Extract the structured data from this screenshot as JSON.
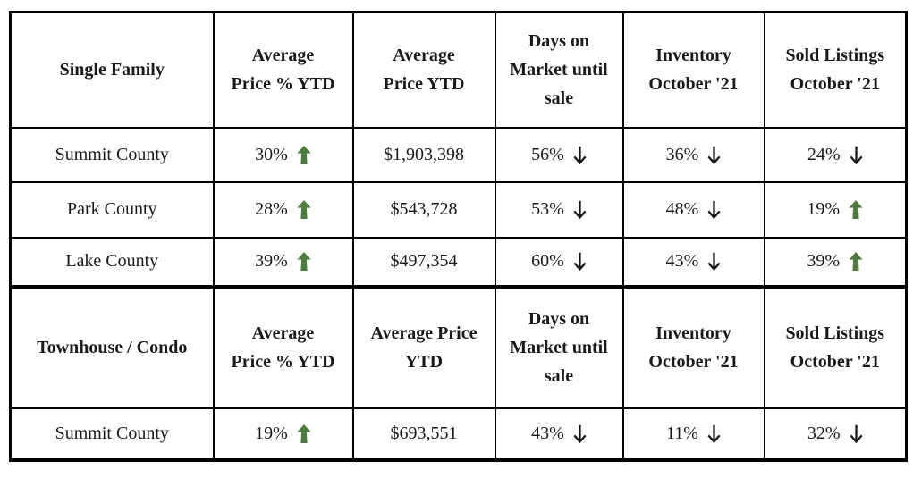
{
  "colors": {
    "trend_up": "#4e7c3e",
    "trend_down": "#161616",
    "border": "#000000",
    "text": "#1a1a1a",
    "background": "#ffffff"
  },
  "chart_data": {
    "type": "table",
    "sections": [
      {
        "title": "Single Family",
        "col_headers": [
          "Average\nPrice % YTD",
          "Average\nPrice YTD",
          "Days on\nMarket until\nsale",
          "Inventory\nOctober '21",
          "Sold Listings\nOctober '21"
        ],
        "rows": [
          {
            "label": "Summit County",
            "avg_price_pct": {
              "value": "30%",
              "trend": "up"
            },
            "avg_price": "$1,903,398",
            "days_on_market": {
              "value": "56%",
              "trend": "down"
            },
            "inventory": {
              "value": "36%",
              "trend": "down"
            },
            "sold_listings": {
              "value": "24%",
              "trend": "down"
            }
          },
          {
            "label": "Park County",
            "avg_price_pct": {
              "value": "28%",
              "trend": "up"
            },
            "avg_price": "$543,728",
            "days_on_market": {
              "value": "53%",
              "trend": "down"
            },
            "inventory": {
              "value": "48%",
              "trend": "down"
            },
            "sold_listings": {
              "value": "19%",
              "trend": "up"
            }
          },
          {
            "label": "Lake County",
            "avg_price_pct": {
              "value": "39%",
              "trend": "up"
            },
            "avg_price": "$497,354",
            "days_on_market": {
              "value": "60%",
              "trend": "down"
            },
            "inventory": {
              "value": "43%",
              "trend": "down"
            },
            "sold_listings": {
              "value": "39%",
              "trend": "up"
            }
          }
        ]
      },
      {
        "title": "Townhouse / Condo",
        "col_headers": [
          "Average\nPrice % YTD",
          "Average Price\nYTD",
          "Days on\nMarket until\nsale",
          "Inventory\nOctober '21",
          "Sold Listings\nOctober '21"
        ],
        "rows": [
          {
            "label": "Summit County",
            "avg_price_pct": {
              "value": "19%",
              "trend": "up"
            },
            "avg_price": "$693,551",
            "days_on_market": {
              "value": "43%",
              "trend": "down"
            },
            "inventory": {
              "value": "11%",
              "trend": "down"
            },
            "sold_listings": {
              "value": "32%",
              "trend": "down"
            }
          }
        ]
      }
    ]
  }
}
